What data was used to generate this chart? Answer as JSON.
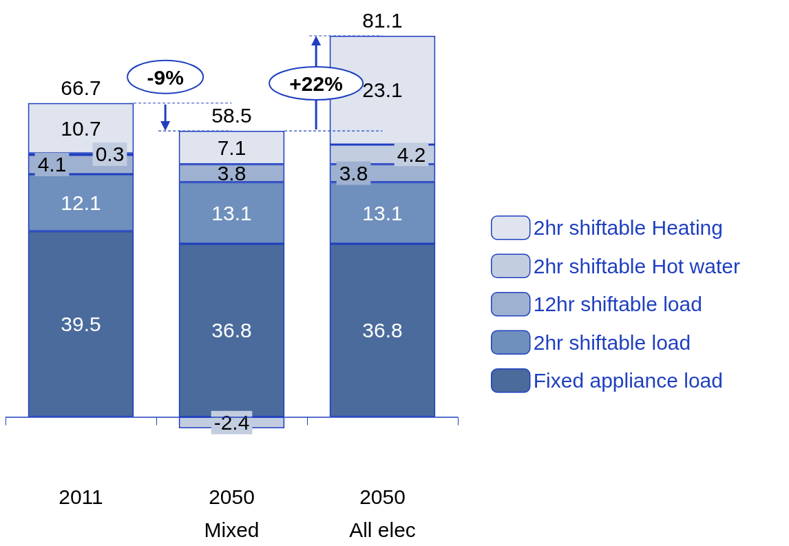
{
  "chart_data": {
    "type": "bar",
    "stacked": true,
    "categories": [
      "2011",
      "2050\nMixed",
      "2050\nAll elec"
    ],
    "series": [
      {
        "name": "Fixed appliance load",
        "color": "#4a6b9c",
        "values": [
          39.5,
          36.8,
          36.8
        ]
      },
      {
        "name": "2hr shiftable load",
        "color": "#6f8fbd",
        "values": [
          12.1,
          13.1,
          13.1
        ]
      },
      {
        "name": "12hr shiftable load",
        "color": "#9fb1d0",
        "values": [
          4.1,
          3.8,
          3.8
        ]
      },
      {
        "name": "2hr shiftable Hot water",
        "color": "#c3cde0",
        "values": [
          0.3,
          -2.4,
          4.2
        ]
      },
      {
        "name": "2hr shiftable Heating",
        "color": "#dfe4ef",
        "values": [
          10.7,
          7.1,
          23.1
        ]
      }
    ],
    "data_labels": true,
    "totals": [
      "66.7",
      "58.5",
      "81.1"
    ],
    "annotations": [
      "-9%",
      "+22%"
    ],
    "legend": "right",
    "grid": false,
    "ref_lines": [
      {
        "axis": "y",
        "value": 0,
        "color": "#1f3fbf"
      }
    ]
  }
}
